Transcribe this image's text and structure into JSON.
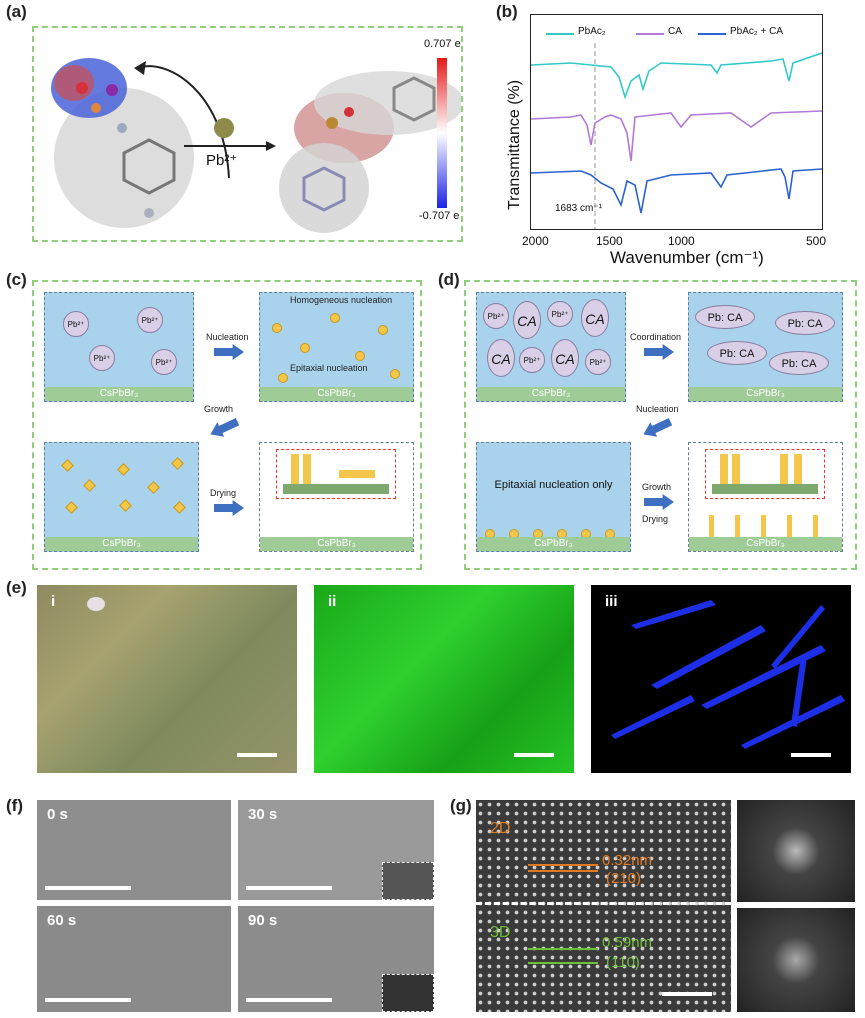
{
  "panels": {
    "a": "(a)",
    "b": "(b)",
    "c": "(c)",
    "d": "(d)",
    "e": "(e)",
    "f": "(f)",
    "g": "(g)"
  },
  "a": {
    "ion": "Pb²⁺",
    "cbar_max": "0.707 e",
    "cbar_min": "-0.707 e"
  },
  "b": {
    "legend": [
      "PbAc₂",
      "CA",
      "PbAc₂ + CA"
    ],
    "ylabel": "Transmittance (%)",
    "xlabel": "Wavenumber (cm⁻¹)",
    "xticks": [
      "2000",
      "1500",
      "1000",
      "500"
    ],
    "annotation": "1683 cm⁻¹",
    "colors": [
      "#33c9c9",
      "#b27ad6",
      "#2a63cf"
    ]
  },
  "c": {
    "substrate": "CsPbBr₃",
    "ion": "Pb²⁺",
    "nucleation": "Nucleation",
    "growth": "Growth",
    "drying": "Drying",
    "homogeneous": "Homogeneous nucleation",
    "epitaxial": "Epitaxial nucleation"
  },
  "d": {
    "substrate": "CsPbBr₃",
    "ion": "Pb²⁺",
    "ca": "CA",
    "pb": "Pb",
    "coordination": "Coordination",
    "nucleation": "Nucleation",
    "growth": "Growth",
    "drying": "Drying",
    "epi_only": "Epitaxial nucleation only"
  },
  "e": {
    "labels": [
      "i",
      "ii",
      "iii"
    ]
  },
  "f": {
    "labels": [
      "0 s",
      "30 s",
      "60 s",
      "90 s"
    ]
  },
  "g": {
    "label_2d": "2D",
    "d_2d": "0.32nm",
    "hkl_2d": "(210)",
    "label_3d": "3D",
    "d_3d": "0.59nm",
    "hkl_3d": "(110)"
  }
}
